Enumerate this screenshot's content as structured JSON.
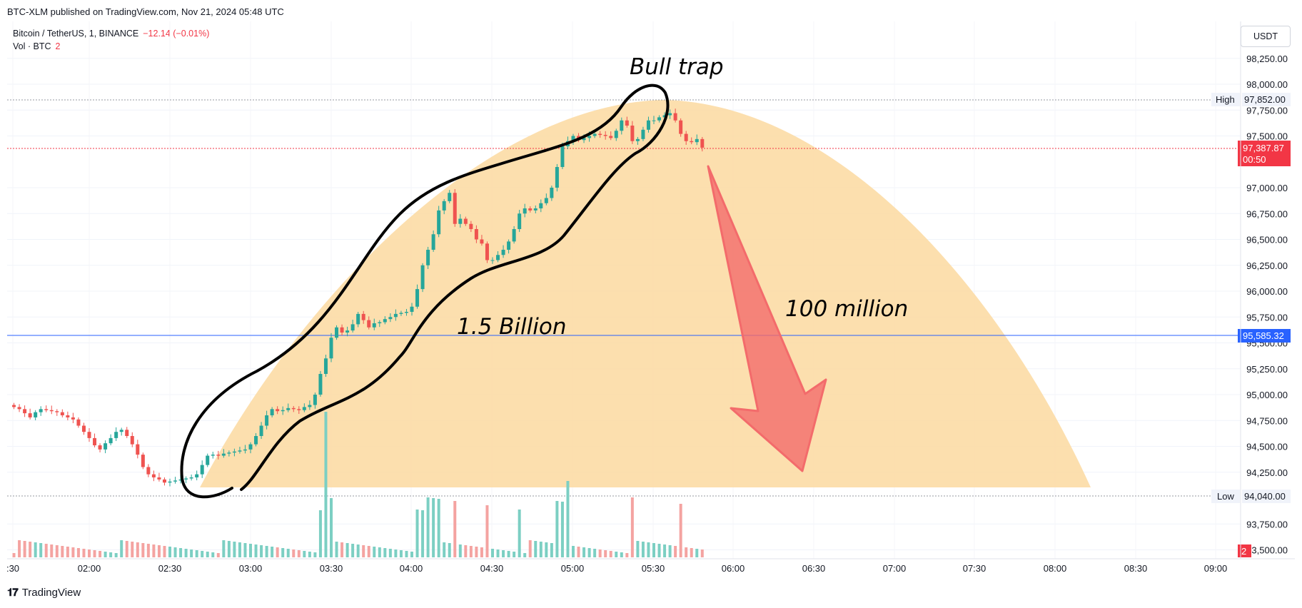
{
  "header": {
    "published_text": "BTC-XLM published on TradingView.com, Nov 21, 2024 05:48 UTC"
  },
  "legend": {
    "symbol": "Bitcoin / TetherUS, 1, BINANCE",
    "change": "−12.14 (−0.01%)",
    "volume_label": "Vol · BTC",
    "volume_value": "2"
  },
  "currency_button": "USDT",
  "price_axis": {
    "ticks": [
      "98,250.00",
      "98,000.00",
      "97,750.00",
      "97,500.00",
      "97,000.00",
      "96,750.00",
      "96,500.00",
      "96,250.00",
      "96,000.00",
      "95,750.00",
      "95,500.00",
      "95,250.00",
      "95,000.00",
      "94,750.00",
      "94,500.00",
      "94,250.00",
      "93,750.00",
      "93,500.00"
    ],
    "tick_values": [
      98250,
      98000,
      97750,
      97500,
      97000,
      96750,
      96500,
      96250,
      96000,
      95750,
      95500,
      95250,
      95000,
      94750,
      94500,
      94250,
      93750,
      93500
    ],
    "high_label": "High",
    "high_value": "97,852.00",
    "low_label": "Low",
    "low_value": "94,040.00",
    "last_price": "97,387.87",
    "countdown": "00:50",
    "line_price": "95,585.32",
    "volume_badge": "2"
  },
  "time_axis": {
    "ticks": [
      ":30",
      "02:00",
      "02:30",
      "03:00",
      "03:30",
      "04:00",
      "04:30",
      "05:00",
      "05:30",
      "06:00",
      "06:30",
      "07:00",
      "07:30",
      "08:00",
      "08:30",
      "09:00"
    ]
  },
  "annotations": {
    "bull_trap": "Bull trap",
    "billion": "1.5 Billion",
    "million": "100 million"
  },
  "colors": {
    "up": "#26a69a",
    "down": "#ef5350",
    "arc_fill": "#fbd9a0",
    "arrow": "#f36b6b",
    "blue_line": "#2962ff",
    "price_badge": "#f23645",
    "blue_badge": "#2962ff"
  },
  "footer": {
    "brand": "TradingView"
  },
  "chart_data": {
    "type": "candlestick",
    "ylim": [
      93400,
      98400
    ],
    "times": [
      "01:32",
      "01:34",
      "01:36",
      "01:38",
      "01:40",
      "01:42",
      "01:44",
      "01:46",
      "01:48",
      "01:50",
      "01:52",
      "01:54",
      "01:56",
      "01:58",
      "02:00",
      "02:02",
      "02:04",
      "02:06",
      "02:08",
      "02:10",
      "02:12",
      "02:14",
      "02:16",
      "02:18",
      "02:20",
      "02:22",
      "02:24",
      "02:26",
      "02:28",
      "02:30",
      "02:32",
      "02:34",
      "02:36",
      "02:38",
      "02:40",
      "02:42",
      "02:44",
      "02:46",
      "02:48",
      "02:50",
      "02:52",
      "02:54",
      "02:56",
      "02:58",
      "03:00",
      "03:02",
      "03:04",
      "03:06",
      "03:08",
      "03:10",
      "03:12",
      "03:14",
      "03:16",
      "03:18",
      "03:20",
      "03:22",
      "03:24",
      "03:26",
      "03:28",
      "03:30",
      "03:32",
      "03:34",
      "03:36",
      "03:38",
      "03:40",
      "03:42",
      "03:44",
      "03:46",
      "03:48",
      "03:50",
      "03:52",
      "03:54",
      "03:56",
      "03:58",
      "04:00",
      "04:02",
      "04:04",
      "04:06",
      "04:08",
      "04:10",
      "04:12",
      "04:14",
      "04:16",
      "04:18",
      "04:20",
      "04:22",
      "04:24",
      "04:26",
      "04:28",
      "04:30",
      "04:32",
      "04:34",
      "04:36",
      "04:38",
      "04:40",
      "04:42",
      "04:44",
      "04:46",
      "04:48",
      "04:50",
      "04:52",
      "04:54",
      "04:56",
      "04:58",
      "05:00",
      "05:02",
      "05:04",
      "05:06",
      "05:08",
      "05:10",
      "05:12",
      "05:14",
      "05:16",
      "05:18",
      "05:20",
      "05:22",
      "05:24",
      "05:26",
      "05:28",
      "05:30",
      "05:32",
      "05:34",
      "05:36",
      "05:38",
      "05:40",
      "05:42",
      "05:44",
      "05:46",
      "05:48"
    ],
    "close": [
      94880,
      94860,
      94820,
      94780,
      94830,
      94860,
      94850,
      94840,
      94830,
      94800,
      94780,
      94760,
      94700,
      94640,
      94580,
      94510,
      94470,
      94530,
      94580,
      94640,
      94660,
      94600,
      94520,
      94420,
      94300,
      94230,
      94200,
      94180,
      94150,
      94160,
      94170,
      94180,
      94190,
      94200,
      94230,
      94320,
      94410,
      94420,
      94410,
      94430,
      94440,
      94450,
      94460,
      94470,
      94520,
      94600,
      94700,
      94800,
      94860,
      94840,
      94850,
      94870,
      94860,
      94850,
      94880,
      94900,
      95000,
      95200,
      95350,
      95550,
      95650,
      95600,
      95620,
      95680,
      95780,
      95720,
      95650,
      95690,
      95700,
      95730,
      95750,
      95780,
      95790,
      95800,
      95850,
      96020,
      96250,
      96400,
      96550,
      96780,
      96870,
      96950,
      96650,
      96700,
      96650,
      96600,
      96500,
      96460,
      96300,
      96300,
      96350,
      96400,
      96480,
      96600,
      96750,
      96800,
      96780,
      96800,
      96850,
      96900,
      97000,
      97200,
      97400,
      97450,
      97500,
      97460,
      97480,
      97500,
      97520,
      97510,
      97500,
      97480,
      97550,
      97650,
      97600,
      97450,
      97470,
      97560,
      97650,
      97650,
      97680,
      97700,
      97720,
      97650,
      97520,
      97450,
      97440,
      97470,
      97387
    ]
  }
}
